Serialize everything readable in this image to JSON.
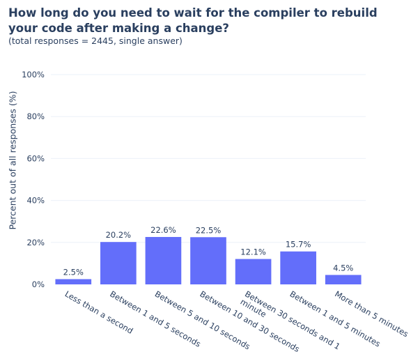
{
  "chart_data": {
    "type": "bar",
    "title": "How long do you need to wait for the compiler to rebuild your code after making a change?",
    "subtitle": "(total responses = 2445, single answer)",
    "xlabel": "",
    "ylabel": "Percent out of all responses (%)",
    "categories": [
      "Less than a second",
      "Between 1 and 5 seconds",
      "Between 5 and 10 seconds",
      "Between 10 and 30 seconds",
      "Between 30 seconds and 1 minute",
      "Between 1 and 5 minutes",
      "More than 5 minutes"
    ],
    "category_label_lines": [
      [
        "Less than a second"
      ],
      [
        "Between 1 and 5 seconds"
      ],
      [
        "Between 5 and 10 seconds"
      ],
      [
        "Between 10 and 30 seconds"
      ],
      [
        "Between 30 seconds and 1",
        "minute"
      ],
      [
        "Between 1 and 5 minutes"
      ],
      [
        "More than 5 minutes"
      ]
    ],
    "values": [
      2.5,
      20.2,
      22.6,
      22.5,
      12.1,
      15.7,
      4.5
    ],
    "data_labels": [
      "2.5%",
      "20.2%",
      "22.6%",
      "22.5%",
      "12.1%",
      "15.7%",
      "4.5%"
    ],
    "ylim": [
      0,
      100
    ],
    "yticks": [
      0,
      20,
      40,
      60,
      80,
      100
    ],
    "ytick_labels": [
      "0%",
      "20%",
      "40%",
      "60%",
      "80%",
      "100%"
    ],
    "grid": true,
    "bar_color": "#636efa",
    "grid_color": "#ebf0f8"
  }
}
